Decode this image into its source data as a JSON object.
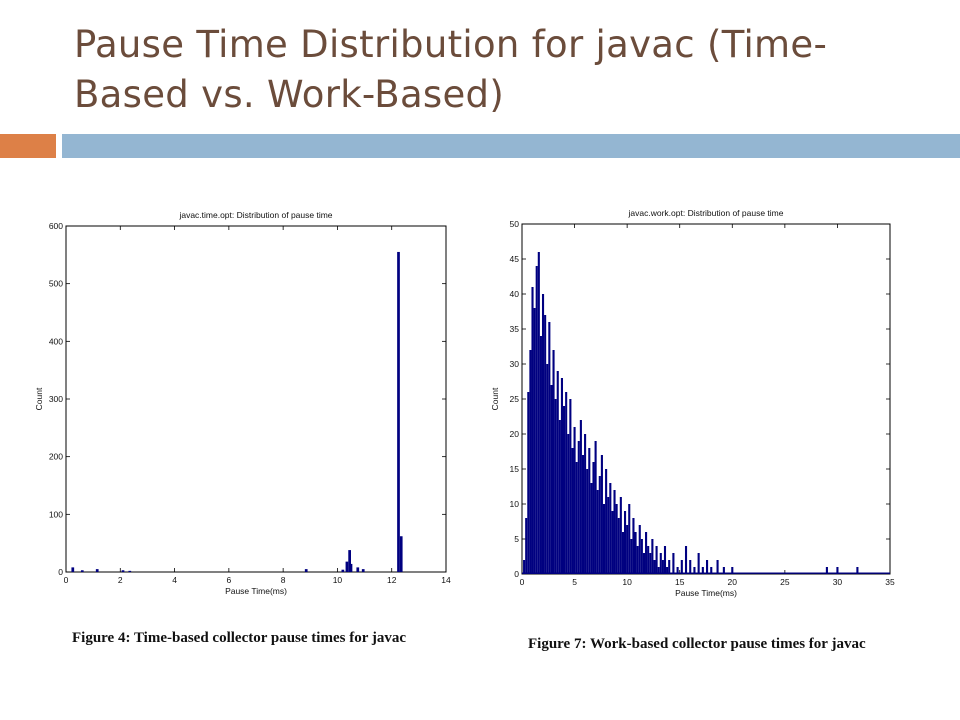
{
  "slide": {
    "title": "Pause Time Distribution for javac (Time-Based vs. Work-Based)",
    "accent_color": "#dd8047",
    "rule_color": "#94b6d2",
    "title_color": "#6b4c3b"
  },
  "chart_data": [
    {
      "type": "bar",
      "title": "javac.time.opt: Distribution of pause time",
      "xlabel": "Pause Time(ms)",
      "ylabel": "Count",
      "xlim": [
        0,
        14
      ],
      "ylim": [
        0,
        600
      ],
      "xticks": [
        0,
        2,
        4,
        6,
        8,
        10,
        12,
        14
      ],
      "yticks": [
        0,
        100,
        200,
        300,
        400,
        500,
        600
      ],
      "grid": false,
      "bar_color": "#000080",
      "x": [
        0.25,
        0.6,
        1.15,
        2.1,
        2.35,
        8.85,
        10.2,
        10.35,
        10.45,
        10.5,
        10.75,
        10.95,
        12.25,
        12.35
      ],
      "values": [
        8,
        3,
        5,
        3,
        2,
        5,
        4,
        18,
        38,
        14,
        8,
        5,
        555,
        62
      ],
      "caption": "Figure 4: Time-based collector pause times for javac"
    },
    {
      "type": "bar",
      "title": "javac.work.opt: Distribution of pause time",
      "xlabel": "Pause Time(ms)",
      "ylabel": "Count",
      "xlim": [
        0,
        35
      ],
      "ylim": [
        0,
        50
      ],
      "xticks": [
        0,
        5,
        10,
        15,
        20,
        25,
        30,
        35
      ],
      "yticks": [
        0,
        5,
        10,
        15,
        20,
        25,
        30,
        35,
        40,
        45,
        50
      ],
      "grid": false,
      "bar_color": "#000080",
      "x": [
        0.2,
        0.4,
        0.6,
        0.8,
        1.0,
        1.2,
        1.4,
        1.6,
        1.8,
        2.0,
        2.2,
        2.4,
        2.6,
        2.8,
        3.0,
        3.2,
        3.4,
        3.6,
        3.8,
        4.0,
        4.2,
        4.4,
        4.6,
        4.8,
        5.0,
        5.2,
        5.4,
        5.6,
        5.8,
        6.0,
        6.2,
        6.4,
        6.6,
        6.8,
        7.0,
        7.2,
        7.4,
        7.6,
        7.8,
        8.0,
        8.2,
        8.4,
        8.6,
        8.8,
        9.0,
        9.2,
        9.4,
        9.6,
        9.8,
        10.0,
        10.2,
        10.4,
        10.6,
        10.8,
        11.0,
        11.2,
        11.4,
        11.6,
        11.8,
        12.0,
        12.2,
        12.4,
        12.6,
        12.8,
        13.0,
        13.2,
        13.4,
        13.6,
        13.8,
        14.0,
        14.4,
        14.8,
        15.2,
        15.6,
        16.0,
        16.4,
        16.8,
        17.2,
        17.6,
        18.0,
        18.6,
        19.2,
        20.0,
        29.0,
        30.0,
        31.9
      ],
      "values": [
        2,
        8,
        26,
        32,
        41,
        38,
        44,
        46,
        34,
        40,
        37,
        30,
        36,
        27,
        32,
        25,
        29,
        22,
        28,
        24,
        26,
        20,
        25,
        18,
        21,
        16,
        19,
        22,
        17,
        20,
        15,
        18,
        13,
        16,
        19,
        12,
        14,
        17,
        10,
        15,
        11,
        13,
        9,
        12,
        10,
        8,
        11,
        6,
        9,
        7,
        10,
        5,
        8,
        6,
        4,
        7,
        5,
        3,
        6,
        4,
        3,
        5,
        2,
        4,
        1,
        3,
        2,
        4,
        1,
        2,
        3,
        1,
        2,
        4,
        2,
        1,
        3,
        1,
        2,
        1,
        2,
        1,
        1,
        1,
        1,
        1
      ],
      "caption": "Figure 7: Work-based collector pause times for javac"
    }
  ]
}
